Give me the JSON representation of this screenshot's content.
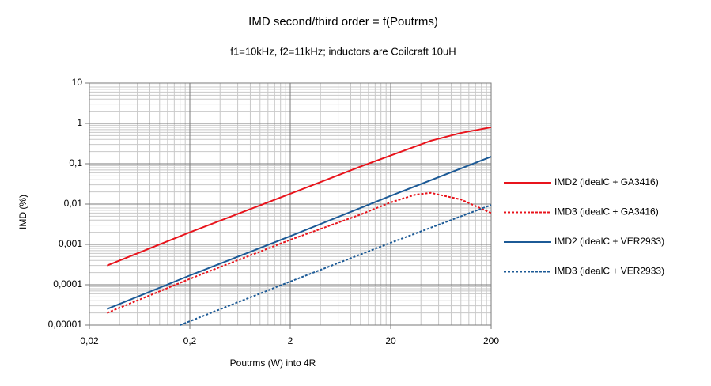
{
  "chart_data": {
    "type": "line",
    "title": "IMD second/third order = f(Poutrms)",
    "subtitle": "f1=10kHz, f2=11kHz; inductors are Coilcraft 10uH",
    "x_label": "Poutrms (W) into 4R",
    "y_label": "IMD (%)",
    "x_log": true,
    "y_log": true,
    "grid": true,
    "minor_grid": true,
    "legend": "right",
    "xlim": [
      0.02,
      200
    ],
    "xticks": [
      {
        "value": 0.02,
        "label": "0,02"
      },
      {
        "value": 0.2,
        "label": "0,2"
      },
      2,
      20,
      200
    ],
    "ylim": [
      1e-05,
      10
    ],
    "yticks": [
      {
        "value": 1e-05,
        "label": "0,00001"
      },
      {
        "value": 0.0001,
        "label": "0,0001"
      },
      {
        "value": 0.001,
        "label": "0,001"
      },
      {
        "value": 0.01,
        "label": "0,01"
      },
      {
        "value": 0.1,
        "label": "0,1"
      },
      1,
      10
    ],
    "series": [
      {
        "name": "IMD2 (idealC + GA3416)",
        "color": "#e8141c",
        "style": "solid",
        "x": [
          0.03,
          0.2,
          2,
          10,
          20,
          50,
          100,
          200
        ],
        "values": [
          0.0003,
          0.002,
          0.018,
          0.085,
          0.16,
          0.37,
          0.58,
          0.8
        ]
      },
      {
        "name": "IMD3 (idealC + GA3416)",
        "color": "#e8141c",
        "style": "dotted",
        "x": [
          0.03,
          0.2,
          2,
          10,
          20,
          35,
          50,
          100,
          200
        ],
        "values": [
          2e-05,
          0.00014,
          0.0013,
          0.0055,
          0.011,
          0.017,
          0.019,
          0.013,
          0.006
        ]
      },
      {
        "name": "IMD2 (idealC + VER2933)",
        "color": "#1c5a96",
        "style": "solid",
        "x": [
          0.03,
          0.2,
          2,
          20,
          200
        ],
        "values": [
          2.5e-05,
          0.00017,
          0.0016,
          0.016,
          0.15
        ]
      },
      {
        "name": "IMD3 (idealC + VER2933)",
        "color": "#1c5a96",
        "style": "dotted",
        "x": [
          0.16,
          2,
          20,
          200
        ],
        "values": [
          1e-05,
          0.00012,
          0.0011,
          0.0095
        ]
      }
    ]
  }
}
